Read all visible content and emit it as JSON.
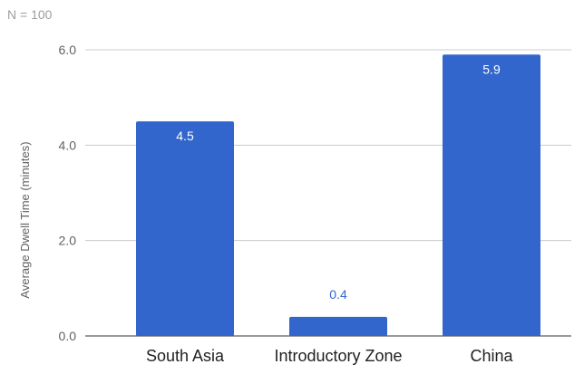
{
  "note": "N = 100",
  "colors": {
    "bar": "#3366cc",
    "grid": "#cccccc",
    "axis_text": "#616161",
    "category_text": "#212121",
    "note_text": "#9e9e9e",
    "label_inside": "#ffffff",
    "label_outside": "#3366cc"
  },
  "chart_data": {
    "type": "bar",
    "title": "",
    "xlabel": "",
    "ylabel": "Average Dwell Time (minutes)",
    "categories": [
      "South Asia",
      "Introductory Zone",
      "China"
    ],
    "values": [
      4.5,
      0.4,
      5.9
    ],
    "data_labels": [
      "4.5",
      "0.4",
      "5.9"
    ],
    "ylim": [
      0,
      6
    ],
    "yticks": [
      0,
      2,
      4,
      6
    ],
    "ytick_labels": [
      "0.0",
      "2.0",
      "4.0",
      "6.0"
    ],
    "grid": true,
    "legend": "none"
  }
}
